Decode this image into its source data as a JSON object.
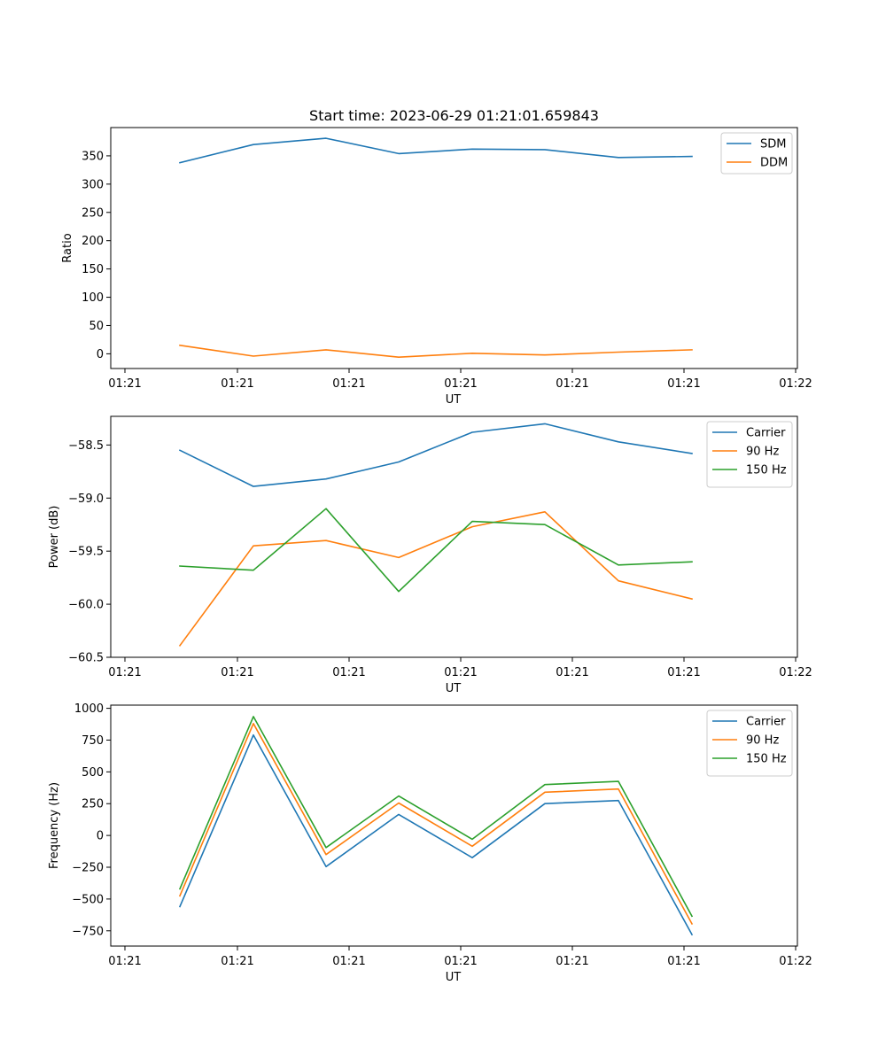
{
  "chart_data": [
    {
      "type": "line",
      "title": "Start time: 2023-06-29 01:21:01.659843",
      "xlabel": "UT",
      "ylabel": "Ratio",
      "x_tick_labels": [
        "01:21",
        "01:21",
        "01:21",
        "01:21",
        "01:21",
        "01:21",
        "01:21",
        "01:22"
      ],
      "ylim": [
        -26,
        400
      ],
      "yticks": [
        0,
        50,
        100,
        150,
        200,
        250,
        300,
        350
      ],
      "ytick_labels": [
        "0",
        "50",
        "100",
        "150",
        "200",
        "250",
        "300",
        "350"
      ],
      "legend_position": "top-right",
      "x": [
        1,
        2,
        3,
        4,
        5,
        6,
        7,
        8
      ],
      "series": [
        {
          "name": "SDM",
          "color": "#1f77b4",
          "values": [
            338,
            370,
            381,
            354,
            362,
            361,
            347,
            349
          ]
        },
        {
          "name": "DDM",
          "color": "#ff7f0e",
          "values": [
            15,
            -4,
            7,
            -6,
            1,
            -2,
            3,
            7
          ]
        }
      ]
    },
    {
      "type": "line",
      "title": "",
      "xlabel": "UT",
      "ylabel": "Power (dB)",
      "x_tick_labels": [
        "01:21",
        "01:21",
        "01:21",
        "01:21",
        "01:21",
        "01:21",
        "01:21",
        "01:22"
      ],
      "ylim": [
        -60.5,
        -58.23
      ],
      "yticks": [
        -60.5,
        -60.0,
        -59.5,
        -59.0,
        -58.5
      ],
      "ytick_labels": [
        "−60.5",
        "−60.0",
        "−59.5",
        "−59.0",
        "−58.5"
      ],
      "legend_position": "top-right",
      "x": [
        1,
        2,
        3,
        4,
        5,
        6,
        7,
        8
      ],
      "series": [
        {
          "name": "Carrier",
          "color": "#1f77b4",
          "values": [
            -58.55,
            -58.89,
            -58.82,
            -58.66,
            -58.38,
            -58.3,
            -58.47,
            -58.58
          ]
        },
        {
          "name": "90 Hz",
          "color": "#ff7f0e",
          "values": [
            -60.39,
            -59.45,
            -59.4,
            -59.56,
            -59.27,
            -59.13,
            -59.78,
            -59.95
          ]
        },
        {
          "name": "150 Hz",
          "color": "#2ca02c",
          "values": [
            -59.64,
            -59.68,
            -59.1,
            -59.88,
            -59.22,
            -59.25,
            -59.63,
            -59.6
          ]
        }
      ]
    },
    {
      "type": "line",
      "title": "",
      "xlabel": "UT",
      "ylabel": "Frequency (Hz)",
      "x_tick_labels": [
        "01:21",
        "01:21",
        "01:21",
        "01:21",
        "01:21",
        "01:21",
        "01:21",
        "01:22"
      ],
      "ylim": [
        -870,
        1025
      ],
      "yticks": [
        -750,
        -500,
        -250,
        0,
        250,
        500,
        750,
        1000
      ],
      "ytick_labels": [
        "−750",
        "−500",
        "−250",
        "0",
        "250",
        "500",
        "750",
        "1000"
      ],
      "legend_position": "top-right",
      "x": [
        1,
        2,
        3,
        4,
        5,
        6,
        7,
        8
      ],
      "series": [
        {
          "name": "Carrier",
          "color": "#1f77b4",
          "values": [
            -560,
            790,
            -245,
            165,
            -175,
            250,
            275,
            -780
          ]
        },
        {
          "name": "90 Hz",
          "color": "#ff7f0e",
          "values": [
            -475,
            880,
            -150,
            255,
            -85,
            340,
            365,
            -695
          ]
        },
        {
          "name": "150 Hz",
          "color": "#2ca02c",
          "values": [
            -420,
            935,
            -95,
            310,
            -30,
            400,
            425,
            -635
          ]
        }
      ]
    }
  ]
}
